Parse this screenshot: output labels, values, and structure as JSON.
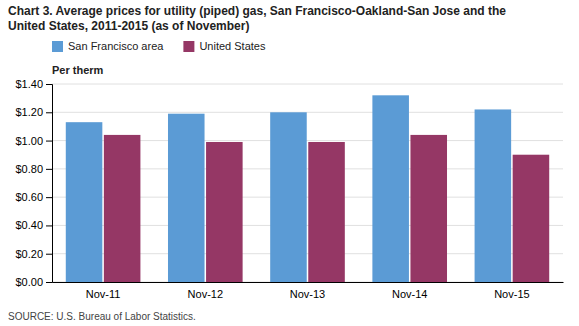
{
  "chart_data": {
    "type": "bar",
    "title": "Chart 3. Average prices for utility (piped) gas, San Francisco-Oakland-San Jose and the",
    "subtitle": "United States, 2011-2015  (as of November)",
    "ylabel": "Per therm",
    "annotations": [
      "SOURCE: U.S. Bureau of Labor Statistics."
    ],
    "categories": [
      "Nov-11",
      "Nov-12",
      "Nov-13",
      "Nov-14",
      "Nov-15"
    ],
    "series": [
      {
        "name": "San Francisco area",
        "color": "#5B9BD5",
        "values": [
          1.13,
          1.19,
          1.2,
          1.32,
          1.22
        ]
      },
      {
        "name": "United States",
        "color": "#953765",
        "values": [
          1.04,
          0.99,
          0.99,
          1.04,
          0.9
        ]
      }
    ],
    "ylim": [
      0,
      1.4
    ],
    "yticks": [
      {
        "value": 0.0,
        "label": "$0.00"
      },
      {
        "value": 0.2,
        "label": "$0.20"
      },
      {
        "value": 0.4,
        "label": "$0.40"
      },
      {
        "value": 0.6,
        "label": "$0.60"
      },
      {
        "value": 0.8,
        "label": "$0.80"
      },
      {
        "value": 1.0,
        "label": "$1.00"
      },
      {
        "value": 1.2,
        "label": "$1.20"
      },
      {
        "value": 1.4,
        "label": "$1.40"
      }
    ],
    "grid": true,
    "legend": "upper-left"
  }
}
